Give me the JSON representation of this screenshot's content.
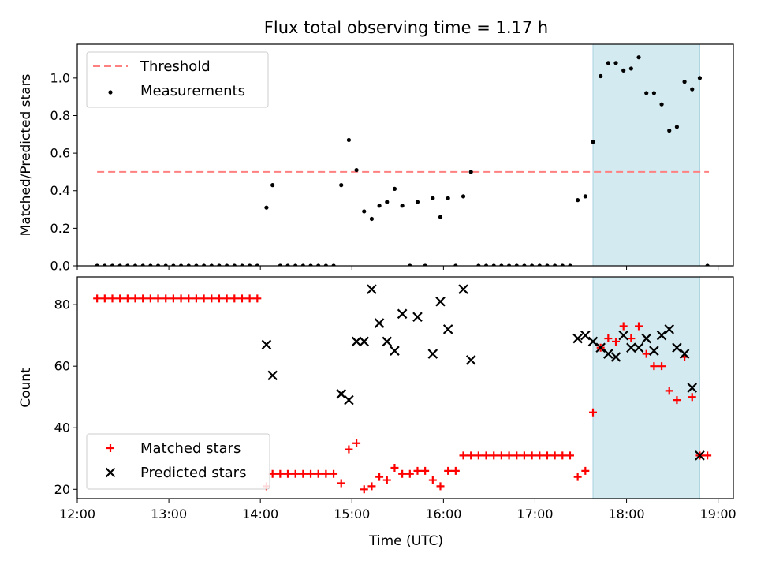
{
  "chart_data": {
    "type": "scatter",
    "title": "Flux total observing time = 1.17 h",
    "xlabel": "Time (UTC)",
    "xlim": [
      "12:00",
      "19:10"
    ],
    "x_ticks": [
      "12:00",
      "13:00",
      "14:00",
      "15:00",
      "16:00",
      "17:00",
      "18:00",
      "19:00"
    ],
    "highlight_span": {
      "start": "17:38",
      "end": "18:48",
      "color": "#d3eaf0"
    },
    "panels": [
      {
        "ylabel": "Matched/Predicted stars",
        "ylim": [
          0,
          1.18
        ],
        "y_ticks": [
          "0.0",
          "0.2",
          "0.4",
          "0.6",
          "0.8",
          "1.0"
        ],
        "legend": {
          "placement": "upper left"
        },
        "series": [
          {
            "name": "Threshold",
            "kind": "dashed-line",
            "color": "#ff8080",
            "x": [
              "12:13",
              "18:54"
            ],
            "y": [
              0.5,
              0.5
            ]
          },
          {
            "name": "Measurements",
            "kind": "dot",
            "color": "#000000",
            "points": [
              [
                "12:13",
                0
              ],
              [
                "12:18",
                0
              ],
              [
                "12:23",
                0
              ],
              [
                "12:28",
                0
              ],
              [
                "12:33",
                0
              ],
              [
                "12:38",
                0
              ],
              [
                "12:43",
                0
              ],
              [
                "12:48",
                0
              ],
              [
                "12:53",
                0
              ],
              [
                "12:58",
                0
              ],
              [
                "13:03",
                0
              ],
              [
                "13:08",
                0
              ],
              [
                "13:13",
                0
              ],
              [
                "13:18",
                0
              ],
              [
                "13:23",
                0
              ],
              [
                "13:28",
                0
              ],
              [
                "13:33",
                0
              ],
              [
                "13:38",
                0
              ],
              [
                "13:43",
                0
              ],
              [
                "13:48",
                0
              ],
              [
                "13:53",
                0
              ],
              [
                "13:58",
                0
              ],
              [
                "14:04",
                0.31
              ],
              [
                "14:08",
                0.43
              ],
              [
                "14:13",
                0
              ],
              [
                "14:18",
                0
              ],
              [
                "14:23",
                0
              ],
              [
                "14:28",
                0
              ],
              [
                "14:33",
                0
              ],
              [
                "14:38",
                0
              ],
              [
                "14:43",
                0
              ],
              [
                "14:48",
                0
              ],
              [
                "14:53",
                0.43
              ],
              [
                "14:58",
                0.67
              ],
              [
                "15:03",
                0.51
              ],
              [
                "15:08",
                0.29
              ],
              [
                "15:13",
                0.25
              ],
              [
                "15:18",
                0.32
              ],
              [
                "15:23",
                0.34
              ],
              [
                "15:28",
                0.41
              ],
              [
                "15:33",
                0.32
              ],
              [
                "15:38",
                0
              ],
              [
                "15:43",
                0.34
              ],
              [
                "15:48",
                0
              ],
              [
                "15:53",
                0.36
              ],
              [
                "15:58",
                0.26
              ],
              [
                "16:03",
                0.36
              ],
              [
                "16:08",
                0
              ],
              [
                "16:13",
                0.37
              ],
              [
                "16:18",
                0.5
              ],
              [
                "16:23",
                0
              ],
              [
                "16:28",
                0
              ],
              [
                "16:33",
                0
              ],
              [
                "16:38",
                0
              ],
              [
                "16:43",
                0
              ],
              [
                "16:48",
                0
              ],
              [
                "16:53",
                0
              ],
              [
                "16:58",
                0
              ],
              [
                "17:03",
                0
              ],
              [
                "17:08",
                0
              ],
              [
                "17:13",
                0
              ],
              [
                "17:18",
                0
              ],
              [
                "17:23",
                0
              ],
              [
                "17:28",
                0.35
              ],
              [
                "17:33",
                0.37
              ],
              [
                "17:38",
                0.66
              ],
              [
                "17:43",
                1.01
              ],
              [
                "17:48",
                1.08
              ],
              [
                "17:53",
                1.08
              ],
              [
                "17:58",
                1.04
              ],
              [
                "18:03",
                1.05
              ],
              [
                "18:08",
                1.11
              ],
              [
                "18:13",
                0.92
              ],
              [
                "18:18",
                0.92
              ],
              [
                "18:23",
                0.86
              ],
              [
                "18:28",
                0.72
              ],
              [
                "18:33",
                0.74
              ],
              [
                "18:38",
                0.98
              ],
              [
                "18:43",
                0.94
              ],
              [
                "18:48",
                1.0
              ],
              [
                "18:53",
                0
              ]
            ]
          }
        ]
      },
      {
        "ylabel": "Count",
        "ylim": [
          17,
          89
        ],
        "y_ticks": [
          "20",
          "40",
          "60",
          "80"
        ],
        "legend": {
          "placement": "lower left"
        },
        "series": [
          {
            "name": "Matched stars",
            "kind": "plus",
            "color": "#ff0000",
            "points": [
              [
                "12:13",
                82
              ],
              [
                "12:18",
                82
              ],
              [
                "12:23",
                82
              ],
              [
                "12:28",
                82
              ],
              [
                "12:33",
                82
              ],
              [
                "12:38",
                82
              ],
              [
                "12:43",
                82
              ],
              [
                "12:48",
                82
              ],
              [
                "12:53",
                82
              ],
              [
                "12:58",
                82
              ],
              [
                "13:03",
                82
              ],
              [
                "13:08",
                82
              ],
              [
                "13:13",
                82
              ],
              [
                "13:18",
                82
              ],
              [
                "13:23",
                82
              ],
              [
                "13:28",
                82
              ],
              [
                "13:33",
                82
              ],
              [
                "13:38",
                82
              ],
              [
                "13:43",
                82
              ],
              [
                "13:48",
                82
              ],
              [
                "13:53",
                82
              ],
              [
                "13:58",
                82
              ],
              [
                "14:04",
                21
              ],
              [
                "14:08",
                25
              ],
              [
                "14:13",
                25
              ],
              [
                "14:18",
                25
              ],
              [
                "14:23",
                25
              ],
              [
                "14:28",
                25
              ],
              [
                "14:33",
                25
              ],
              [
                "14:38",
                25
              ],
              [
                "14:43",
                25
              ],
              [
                "14:48",
                25
              ],
              [
                "14:53",
                22
              ],
              [
                "14:58",
                33
              ],
              [
                "15:03",
                35
              ],
              [
                "15:08",
                20
              ],
              [
                "15:13",
                21
              ],
              [
                "15:18",
                24
              ],
              [
                "15:23",
                23
              ],
              [
                "15:28",
                27
              ],
              [
                "15:33",
                25
              ],
              [
                "15:38",
                25
              ],
              [
                "15:43",
                26
              ],
              [
                "15:48",
                26
              ],
              [
                "15:53",
                23
              ],
              [
                "15:58",
                21
              ],
              [
                "16:03",
                26
              ],
              [
                "16:08",
                26
              ],
              [
                "16:13",
                31
              ],
              [
                "16:18",
                31
              ],
              [
                "16:23",
                31
              ],
              [
                "16:28",
                31
              ],
              [
                "16:33",
                31
              ],
              [
                "16:38",
                31
              ],
              [
                "16:43",
                31
              ],
              [
                "16:48",
                31
              ],
              [
                "16:53",
                31
              ],
              [
                "16:58",
                31
              ],
              [
                "17:03",
                31
              ],
              [
                "17:08",
                31
              ],
              [
                "17:13",
                31
              ],
              [
                "17:18",
                31
              ],
              [
                "17:23",
                31
              ],
              [
                "17:28",
                24
              ],
              [
                "17:33",
                26
              ],
              [
                "17:38",
                45
              ],
              [
                "17:43",
                66
              ],
              [
                "17:48",
                69
              ],
              [
                "17:53",
                68
              ],
              [
                "17:58",
                73
              ],
              [
                "18:03",
                69
              ],
              [
                "18:08",
                73
              ],
              [
                "18:13",
                64
              ],
              [
                "18:18",
                60
              ],
              [
                "18:23",
                60
              ],
              [
                "18:28",
                52
              ],
              [
                "18:33",
                49
              ],
              [
                "18:38",
                63
              ],
              [
                "18:43",
                50
              ],
              [
                "18:48",
                31
              ],
              [
                "18:53",
                31
              ]
            ]
          },
          {
            "name": "Predicted stars",
            "kind": "x",
            "color": "#000000",
            "points": [
              [
                "14:04",
                67
              ],
              [
                "14:08",
                57
              ],
              [
                "14:53",
                51
              ],
              [
                "14:58",
                49
              ],
              [
                "15:03",
                68
              ],
              [
                "15:08",
                68
              ],
              [
                "15:13",
                85
              ],
              [
                "15:18",
                74
              ],
              [
                "15:23",
                68
              ],
              [
                "15:28",
                65
              ],
              [
                "15:33",
                77
              ],
              [
                "15:43",
                76
              ],
              [
                "15:53",
                64
              ],
              [
                "15:58",
                81
              ],
              [
                "16:03",
                72
              ],
              [
                "16:13",
                85
              ],
              [
                "16:18",
                62
              ],
              [
                "17:28",
                69
              ],
              [
                "17:33",
                70
              ],
              [
                "17:38",
                68
              ],
              [
                "17:43",
                66
              ],
              [
                "17:48",
                64
              ],
              [
                "17:53",
                63
              ],
              [
                "17:58",
                70
              ],
              [
                "18:03",
                66
              ],
              [
                "18:08",
                66
              ],
              [
                "18:13",
                69
              ],
              [
                "18:18",
                65
              ],
              [
                "18:23",
                70
              ],
              [
                "18:28",
                72
              ],
              [
                "18:33",
                66
              ],
              [
                "18:38",
                64
              ],
              [
                "18:43",
                53
              ],
              [
                "18:48",
                31
              ]
            ]
          }
        ]
      }
    ]
  }
}
